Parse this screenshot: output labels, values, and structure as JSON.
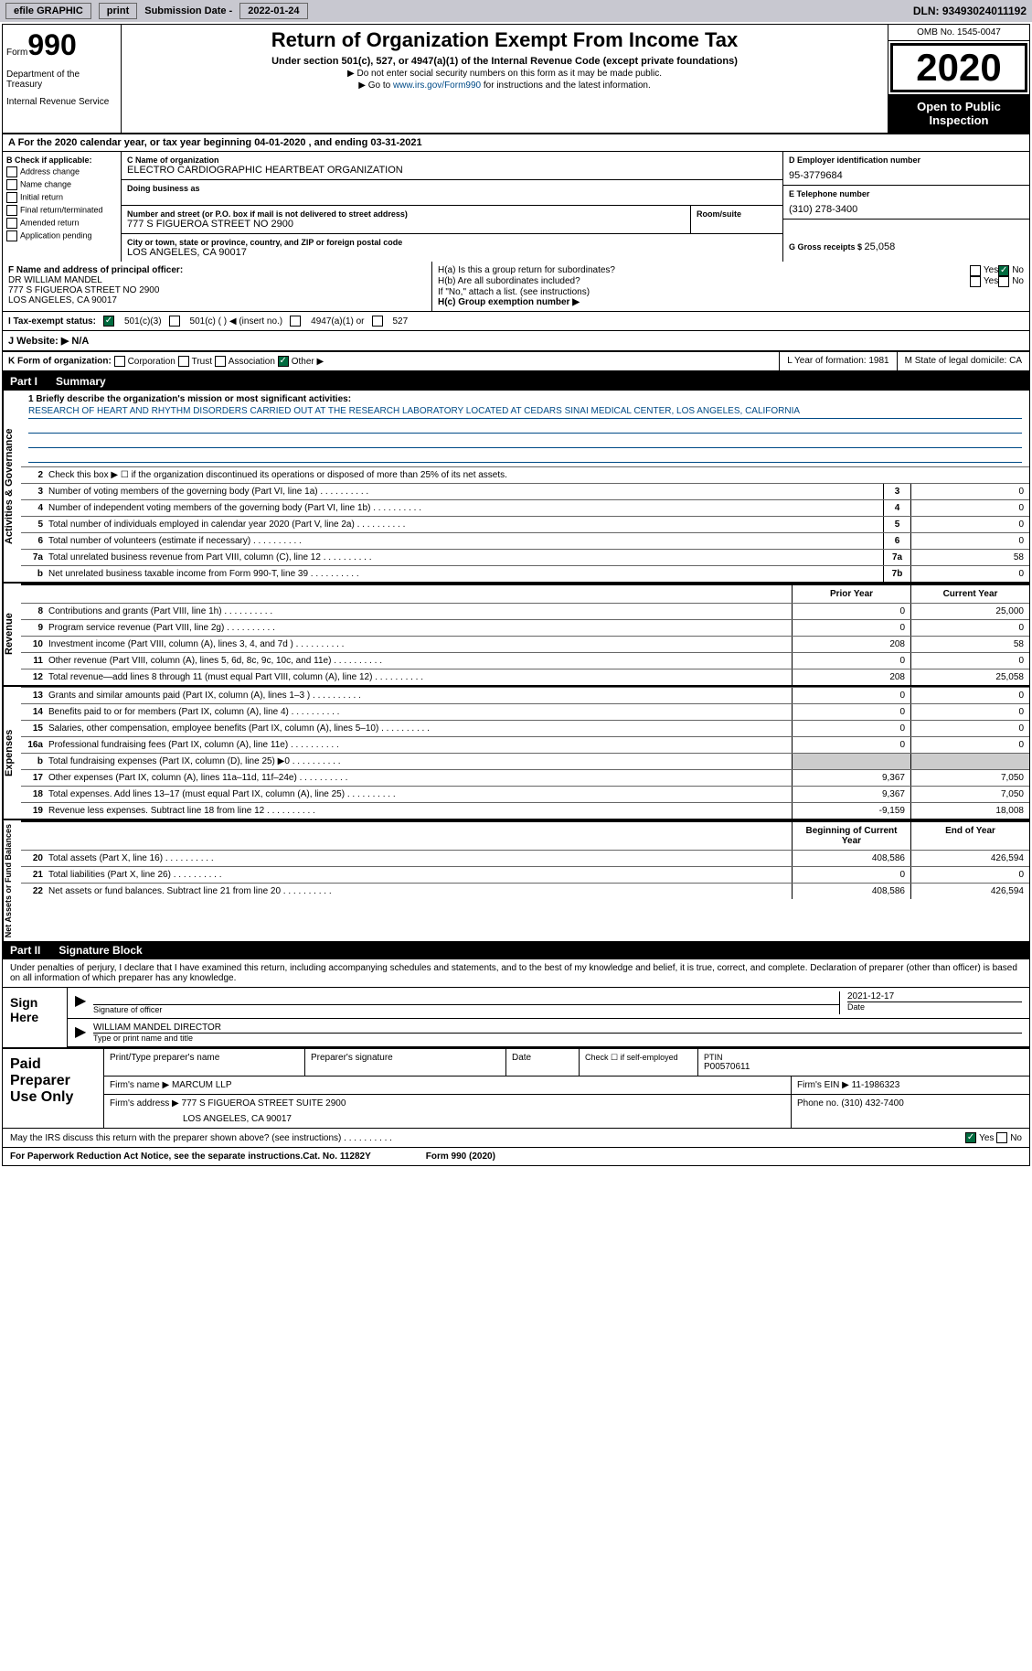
{
  "topbar": {
    "efile": "efile GRAPHIC",
    "print": "print",
    "subdate_label": "Submission Date - ",
    "subdate": "2022-01-24",
    "dln": "DLN: 93493024011192"
  },
  "header": {
    "form_word": "Form",
    "form_num": "990",
    "dept": "Department of the Treasury",
    "irs": "Internal Revenue Service",
    "title": "Return of Organization Exempt From Income Tax",
    "subtitle": "Under section 501(c), 527, or 4947(a)(1) of the Internal Revenue Code (except private foundations)",
    "instr1": "▶ Do not enter social security numbers on this form as it may be made public.",
    "instr2_pre": "▶ Go to ",
    "instr2_link": "www.irs.gov/Form990",
    "instr2_post": " for instructions and the latest information.",
    "omb": "OMB No. 1545-0047",
    "year": "2020",
    "inspection": "Open to Public Inspection"
  },
  "period": "A For the 2020 calendar year, or tax year beginning 04-01-2020    , and ending 03-31-2021",
  "col_b": {
    "title": "B Check if applicable:",
    "items": [
      "Address change",
      "Name change",
      "Initial return",
      "Final return/terminated",
      "Amended return",
      "Application pending"
    ]
  },
  "col_c": {
    "name_label": "C Name of organization",
    "name": "ELECTRO CARDIOGRAPHIC HEARTBEAT ORGANIZATION",
    "dba_label": "Doing business as",
    "dba": "",
    "addr_label": "Number and street (or P.O. box if mail is not delivered to street address)",
    "room_label": "Room/suite",
    "addr": "777 S FIGUEROA STREET NO 2900",
    "city_label": "City or town, state or province, country, and ZIP or foreign postal code",
    "city": "LOS ANGELES, CA  90017"
  },
  "col_de": {
    "d_label": "D Employer identification number",
    "d_val": "95-3779684",
    "e_label": "E Telephone number",
    "e_val": "(310) 278-3400",
    "g_label": "G Gross receipts $ ",
    "g_val": "25,058"
  },
  "officer": {
    "f_label": "F Name and address of principal officer:",
    "name": "DR WILLIAM MANDEL",
    "addr": "777 S FIGUEROA STREET NO 2900",
    "city": "LOS ANGELES, CA  90017",
    "ha_q": "H(a)  Is this a group return for subordinates?",
    "hb_q": "H(b)  Are all subordinates included?",
    "hb_note": "If \"No,\" attach a list. (see instructions)",
    "hc": "H(c)  Group exemption number ▶",
    "yes": "Yes",
    "no": "No"
  },
  "status": {
    "i_label": "I  Tax-exempt status:",
    "opt1": "501(c)(3)",
    "opt2": "501(c) (  ) ◀ (insert no.)",
    "opt3": "4947(a)(1) or",
    "opt4": "527"
  },
  "website": {
    "label": "J  Website: ▶",
    "val": "N/A"
  },
  "k_row": {
    "label": "K Form of organization:",
    "opts": [
      "Corporation",
      "Trust",
      "Association",
      "Other ▶"
    ],
    "l": "L Year of formation: 1981",
    "m": "M State of legal domicile: CA"
  },
  "part1": {
    "label": "Part I",
    "title": "Summary"
  },
  "sidelabels": {
    "gov": "Activities & Governance",
    "rev": "Revenue",
    "exp": "Expenses",
    "net": "Net Assets or Fund Balances"
  },
  "mission": {
    "q": "1  Briefly describe the organization's mission or most significant activities:",
    "text": "RESEARCH OF HEART AND RHYTHM DISORDERS CARRIED OUT AT THE RESEARCH LABORATORY LOCATED AT CEDARS SINAI MEDICAL CENTER, LOS ANGELES, CALIFORNIA"
  },
  "line2": "Check this box ▶ ☐ if the organization discontinued its operations or disposed of more than 25% of its net assets.",
  "gov_lines": [
    {
      "n": "3",
      "d": "Number of voting members of the governing body (Part VI, line 1a)",
      "b": "3",
      "v": "0"
    },
    {
      "n": "4",
      "d": "Number of independent voting members of the governing body (Part VI, line 1b)",
      "b": "4",
      "v": "0"
    },
    {
      "n": "5",
      "d": "Total number of individuals employed in calendar year 2020 (Part V, line 2a)",
      "b": "5",
      "v": "0"
    },
    {
      "n": "6",
      "d": "Total number of volunteers (estimate if necessary)",
      "b": "6",
      "v": "0"
    },
    {
      "n": "7a",
      "d": "Total unrelated business revenue from Part VIII, column (C), line 12",
      "b": "7a",
      "v": "58"
    },
    {
      "n": "b",
      "d": "Net unrelated business taxable income from Form 990-T, line 39",
      "b": "7b",
      "v": "0"
    }
  ],
  "col_headers": {
    "prior": "Prior Year",
    "current": "Current Year",
    "begin": "Beginning of Current Year",
    "end": "End of Year"
  },
  "rev_lines": [
    {
      "n": "8",
      "d": "Contributions and grants (Part VIII, line 1h)",
      "p": "0",
      "c": "25,000"
    },
    {
      "n": "9",
      "d": "Program service revenue (Part VIII, line 2g)",
      "p": "0",
      "c": "0"
    },
    {
      "n": "10",
      "d": "Investment income (Part VIII, column (A), lines 3, 4, and 7d )",
      "p": "208",
      "c": "58"
    },
    {
      "n": "11",
      "d": "Other revenue (Part VIII, column (A), lines 5, 6d, 8c, 9c, 10c, and 11e)",
      "p": "0",
      "c": "0"
    },
    {
      "n": "12",
      "d": "Total revenue—add lines 8 through 11 (must equal Part VIII, column (A), line 12)",
      "p": "208",
      "c": "25,058"
    }
  ],
  "exp_lines": [
    {
      "n": "13",
      "d": "Grants and similar amounts paid (Part IX, column (A), lines 1–3 )",
      "p": "0",
      "c": "0"
    },
    {
      "n": "14",
      "d": "Benefits paid to or for members (Part IX, column (A), line 4)",
      "p": "0",
      "c": "0"
    },
    {
      "n": "15",
      "d": "Salaries, other compensation, employee benefits (Part IX, column (A), lines 5–10)",
      "p": "0",
      "c": "0"
    },
    {
      "n": "16a",
      "d": "Professional fundraising fees (Part IX, column (A), line 11e)",
      "p": "0",
      "c": "0"
    },
    {
      "n": "b",
      "d": "Total fundraising expenses (Part IX, column (D), line 25) ▶0",
      "p": "",
      "c": "",
      "shaded": true
    },
    {
      "n": "17",
      "d": "Other expenses (Part IX, column (A), lines 11a–11d, 11f–24e)",
      "p": "9,367",
      "c": "7,050"
    },
    {
      "n": "18",
      "d": "Total expenses. Add lines 13–17 (must equal Part IX, column (A), line 25)",
      "p": "9,367",
      "c": "7,050"
    },
    {
      "n": "19",
      "d": "Revenue less expenses. Subtract line 18 from line 12",
      "p": "-9,159",
      "c": "18,008"
    }
  ],
  "net_lines": [
    {
      "n": "20",
      "d": "Total assets (Part X, line 16)",
      "p": "408,586",
      "c": "426,594"
    },
    {
      "n": "21",
      "d": "Total liabilities (Part X, line 26)",
      "p": "0",
      "c": "0"
    },
    {
      "n": "22",
      "d": "Net assets or fund balances. Subtract line 21 from line 20",
      "p": "408,586",
      "c": "426,594"
    }
  ],
  "part2": {
    "label": "Part II",
    "title": "Signature Block"
  },
  "sig": {
    "intro": "Under penalties of perjury, I declare that I have examined this return, including accompanying schedules and statements, and to the best of my knowledge and belief, it is true, correct, and complete. Declaration of preparer (other than officer) is based on all information of which preparer has any knowledge.",
    "here": "Sign Here",
    "officer_label": "Signature of officer",
    "date_label": "Date",
    "date": "2021-12-17",
    "name": "WILLIAM MANDEL DIRECTOR",
    "name_label": "Type or print name and title"
  },
  "prep": {
    "title": "Paid Preparer Use Only",
    "name_label": "Print/Type preparer's name",
    "sig_label": "Preparer's signature",
    "date_label": "Date",
    "check_label": "Check ☐ if self-employed",
    "ptin_label": "PTIN",
    "ptin": "P00570611",
    "firm_label": "Firm's name   ▶",
    "firm": "MARCUM LLP",
    "ein_label": "Firm's EIN ▶",
    "ein": "11-1986323",
    "addr_label": "Firm's address ▶",
    "addr": "777 S FIGUEROA STREET SUITE 2900",
    "city": "LOS ANGELES, CA  90017",
    "phone_label": "Phone no.",
    "phone": "(310) 432-7400"
  },
  "discuss": "May the IRS discuss this return with the preparer shown above? (see instructions)",
  "footer": {
    "pra": "For Paperwork Reduction Act Notice, see the separate instructions.",
    "cat": "Cat. No. 11282Y",
    "form": "Form 990 (2020)"
  }
}
